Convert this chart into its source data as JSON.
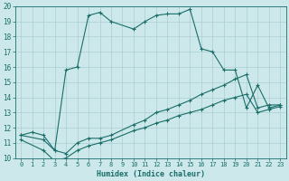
{
  "xlabel": "Humidex (Indice chaleur)",
  "bg_color": "#cce8ea",
  "grid_color": "#aacdd2",
  "line_color": "#1a6e6a",
  "xlim": [
    -0.5,
    23.5
  ],
  "ylim": [
    10,
    20
  ],
  "yticks": [
    10,
    11,
    12,
    13,
    14,
    15,
    16,
    17,
    18,
    19,
    20
  ],
  "xticks": [
    0,
    1,
    2,
    3,
    4,
    5,
    6,
    7,
    8,
    9,
    10,
    11,
    12,
    13,
    14,
    15,
    16,
    17,
    18,
    19,
    20,
    21,
    22,
    23
  ],
  "line1_x": [
    0,
    1,
    2,
    3,
    4,
    5,
    6,
    7,
    8,
    10,
    11,
    12,
    13,
    14,
    15,
    16,
    17,
    18,
    19,
    20,
    21,
    22,
    23
  ],
  "line1_y": [
    11.5,
    11.7,
    11.5,
    10.5,
    15.8,
    16.0,
    19.4,
    19.6,
    19.0,
    18.5,
    19.0,
    19.4,
    19.5,
    19.5,
    19.8,
    17.2,
    17.0,
    15.8,
    15.8,
    13.3,
    14.8,
    13.3,
    13.5
  ],
  "line2_x": [
    0,
    2,
    3,
    4,
    5,
    6,
    7,
    8,
    10,
    11,
    12,
    13,
    14,
    15,
    16,
    17,
    18,
    19,
    20,
    21,
    22,
    23
  ],
  "line2_y": [
    11.5,
    11.2,
    10.5,
    10.3,
    11.0,
    11.3,
    11.3,
    11.5,
    12.2,
    12.5,
    13.0,
    13.2,
    13.5,
    13.8,
    14.2,
    14.5,
    14.8,
    15.2,
    15.5,
    13.3,
    13.5,
    13.5
  ],
  "line3_x": [
    0,
    2,
    3,
    4,
    5,
    6,
    7,
    8,
    10,
    11,
    12,
    13,
    14,
    15,
    16,
    17,
    18,
    19,
    20,
    21,
    22,
    23
  ],
  "line3_y": [
    11.2,
    10.5,
    9.8,
    10.0,
    10.5,
    10.8,
    11.0,
    11.2,
    11.8,
    12.0,
    12.3,
    12.5,
    12.8,
    13.0,
    13.2,
    13.5,
    13.8,
    14.0,
    14.2,
    13.0,
    13.2,
    13.4
  ]
}
